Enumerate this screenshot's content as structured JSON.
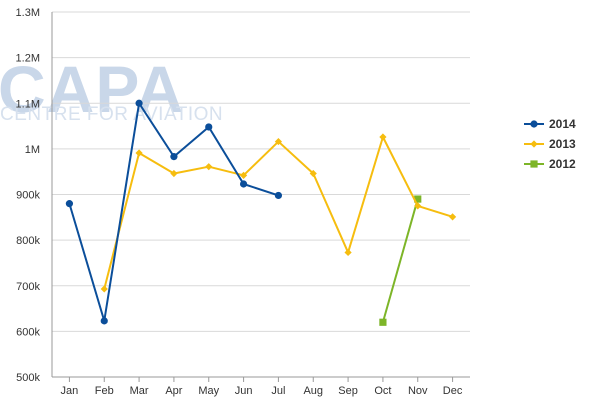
{
  "watermark": {
    "brand": "CAPA",
    "tagline": "CENTRE FOR AVIATION"
  },
  "chart_data": {
    "type": "line",
    "categories": [
      "Jan",
      "Feb",
      "Mar",
      "Apr",
      "May",
      "Jun",
      "Jul",
      "Aug",
      "Sep",
      "Oct",
      "Nov",
      "Dec"
    ],
    "y_ticks": [
      {
        "value": 500000,
        "label": "500k"
      },
      {
        "value": 600000,
        "label": "600k"
      },
      {
        "value": 700000,
        "label": "700k"
      },
      {
        "value": 800000,
        "label": "800k"
      },
      {
        "value": 900000,
        "label": "900k"
      },
      {
        "value": 1000000,
        "label": "1M"
      },
      {
        "value": 1100000,
        "label": "1.1M"
      },
      {
        "value": 1200000,
        "label": "1.2M"
      },
      {
        "value": 1300000,
        "label": "1.3M"
      }
    ],
    "ylim": [
      500000,
      1300000
    ],
    "grid": "horizontal",
    "legend_position": "right",
    "series": [
      {
        "name": "2014",
        "color": "#0b4e9a",
        "marker": "circle",
        "values": [
          880000,
          623000,
          1100000,
          983000,
          1048000,
          923000,
          898000,
          null,
          null,
          null,
          null,
          null
        ]
      },
      {
        "name": "2013",
        "color": "#f6bd0f",
        "marker": "diamond",
        "values": [
          null,
          693000,
          991000,
          946000,
          961000,
          942000,
          1016000,
          946000,
          773000,
          1026000,
          875000,
          851000
        ]
      },
      {
        "name": "2012",
        "color": "#7db528",
        "marker": "square",
        "values": [
          null,
          null,
          null,
          null,
          null,
          null,
          null,
          null,
          null,
          620000,
          890000,
          null
        ]
      }
    ]
  }
}
